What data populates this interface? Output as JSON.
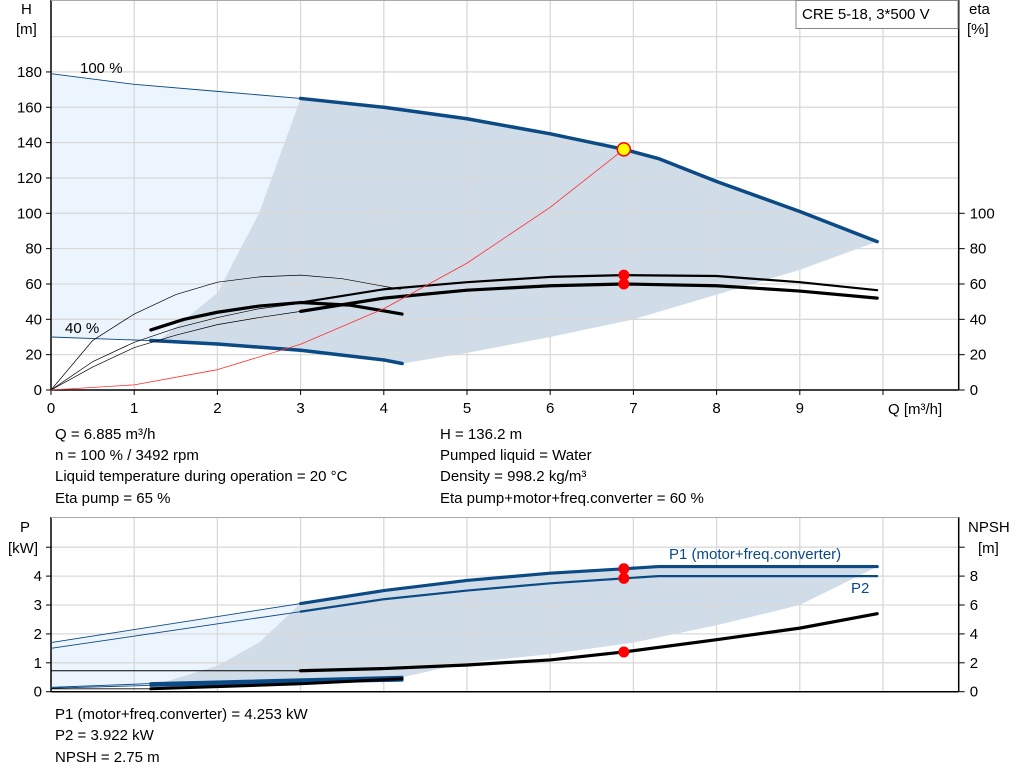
{
  "chart_data": [
    {
      "type": "line",
      "title": "CRE 5-18, 3*500 V",
      "xlabel": "Q [m³/h]",
      "ylabel": "H\n[m]",
      "ylabel_line1": "H",
      "ylabel_line2": "[m]",
      "y2label_line1": "eta",
      "y2label_line2": "[%]",
      "xlim": [
        0,
        10.8
      ],
      "ylim": [
        0,
        220
      ],
      "xticks": [
        0,
        1,
        2,
        3,
        4,
        5,
        6,
        7,
        8,
        9
      ],
      "yticks": [
        0,
        20,
        40,
        60,
        80,
        100,
        120,
        140,
        160,
        180
      ],
      "y2ticks": [
        0,
        20,
        40,
        60,
        80,
        100
      ],
      "grid": true,
      "curve_labels": {
        "max_speed": "100 %",
        "min_speed": "40 %"
      },
      "series": [
        {
          "key": "h100",
          "x": [
            0,
            1,
            2,
            3,
            4,
            5,
            6,
            6.885,
            7.3,
            8,
            9,
            9.93
          ],
          "y": [
            179,
            173,
            169,
            165,
            160,
            153.5,
            145,
            136.2,
            131,
            118,
            101,
            84
          ],
          "color": "#0b4a85",
          "thick_from": 3
        },
        {
          "key": "h40",
          "x": [
            0,
            1,
            1.2,
            2,
            3,
            4,
            4.22
          ],
          "y": [
            30,
            28.3,
            28,
            26,
            22.5,
            17,
            15
          ],
          "color": "#0b4a85",
          "thick_from": 1.2
        },
        {
          "key": "eta_pump",
          "x": [
            3,
            4,
            5,
            6,
            6.885,
            8,
            9,
            9.93
          ],
          "y": [
            49.5,
            57,
            61,
            64,
            65,
            64.5,
            61,
            56.5
          ],
          "color": "#000"
        },
        {
          "key": "eta_total",
          "x": [
            3,
            4,
            5,
            6,
            6.885,
            8,
            9,
            9.93
          ],
          "y": [
            44.5,
            52,
            56.5,
            59,
            60,
            59,
            56,
            52
          ],
          "color": "#000"
        },
        {
          "key": "eta40_thick",
          "x": [
            1.2,
            1.6,
            2,
            2.5,
            3,
            3.6,
            4.22
          ],
          "y": [
            34,
            40,
            44,
            47.5,
            49.5,
            48,
            43
          ],
          "color": "#000"
        },
        {
          "key": "eta40_a",
          "x": [
            0,
            0.5,
            1,
            1.5,
            2,
            2.5,
            3,
            3.5,
            4.2
          ],
          "y": [
            0,
            28,
            43,
            54,
            61,
            64,
            65,
            63,
            57
          ],
          "color": "#000"
        },
        {
          "key": "eta40_b",
          "x": [
            0,
            0.5,
            1,
            1.5,
            2,
            2.5,
            3
          ],
          "y": [
            0,
            16,
            27,
            35,
            41,
            46,
            49
          ],
          "color": "#000"
        },
        {
          "key": "eta40_c",
          "x": [
            0,
            0.5,
            1,
            1.5,
            2,
            2.5,
            3
          ],
          "y": [
            0,
            13,
            24,
            31,
            37,
            41,
            44.5
          ],
          "color": "#000"
        },
        {
          "key": "system",
          "x": [
            0,
            1,
            2,
            3,
            4,
            5,
            6,
            6.885
          ],
          "y": [
            0,
            2.9,
            11.5,
            25.9,
            46,
            71.8,
            103.4,
            136.2
          ],
          "color": "#ff3030"
        }
      ],
      "duty_point": {
        "x": 6.885,
        "y": 136.2,
        "color": "#ffff00"
      },
      "eta_points": [
        65,
        60
      ],
      "area_light": {
        "x": [
          0,
          1,
          2,
          3,
          2.5,
          2,
          1.3,
          1,
          0
        ],
        "y": [
          179,
          173,
          169,
          165,
          100,
          55,
          28,
          28.3,
          30
        ]
      },
      "area_dark": {
        "x": [
          1.3,
          2,
          2.5,
          3,
          4,
          5,
          6,
          6.885,
          7.3,
          8,
          9,
          9.93,
          9,
          8,
          7,
          6,
          5,
          4.22,
          4,
          3,
          2
        ],
        "y": [
          28,
          55,
          100,
          165,
          160,
          153.5,
          145,
          136.2,
          131,
          118,
          101,
          84,
          68,
          54,
          40,
          30,
          21,
          15,
          17,
          22.5,
          26
        ]
      }
    },
    {
      "type": "line",
      "ylabel_line1": "P",
      "ylabel_line2": "[kW]",
      "y2label_line1": "NPSH",
      "y2label_line2": "[m]",
      "xlim": [
        0,
        10.8
      ],
      "ylim": [
        0,
        5.5
      ],
      "yticks": [
        0,
        1,
        2,
        3,
        4
      ],
      "y2ticks": [
        0,
        2,
        4,
        6,
        8
      ],
      "y2lim": [
        0,
        11
      ],
      "grid": true,
      "series": [
        {
          "key": "p1",
          "name": "P1 (motor+freq.converter)",
          "x": [
            0,
            3,
            4,
            5,
            6,
            6.885,
            7.3,
            9.93
          ],
          "y": [
            1.7,
            3.05,
            3.5,
            3.85,
            4.1,
            4.253,
            4.33,
            4.33
          ],
          "color": "#0b4a85",
          "thick_from": 3
        },
        {
          "key": "p2",
          "name": "P2",
          "x": [
            0,
            3,
            4,
            5,
            6,
            6.885,
            7.3,
            9.93
          ],
          "y": [
            1.5,
            2.77,
            3.2,
            3.5,
            3.75,
            3.922,
            4.0,
            4.0
          ],
          "color": "#0b4a85",
          "thick_from": 3
        },
        {
          "key": "npsh",
          "x": [
            0,
            3,
            4,
            5,
            6,
            6.885,
            8,
            9,
            9.93
          ],
          "y_m": [
            1.45,
            1.45,
            1.6,
            1.85,
            2.2,
            2.75,
            3.6,
            4.4,
            5.4
          ],
          "color": "#000",
          "thick_from": 3
        },
        {
          "key": "p1_40",
          "x": [
            0,
            1.2,
            4.22
          ],
          "y": [
            0.15,
            0.28,
            0.5
          ],
          "color": "#0b4a85",
          "thick_from": 1.2
        },
        {
          "key": "p2_40",
          "x": [
            0,
            1.2,
            4.22
          ],
          "y": [
            0.12,
            0.22,
            0.4
          ],
          "color": "#0b4a85",
          "thick_from": 1.2
        },
        {
          "key": "npsh_40",
          "x": [
            0,
            1.2,
            2,
            3,
            4.22
          ],
          "y_m": [
            0.2,
            0.2,
            0.35,
            0.55,
            0.9
          ],
          "color": "#000",
          "thick_from": 1.2
        }
      ],
      "points": {
        "p1": 4.253,
        "p2": 3.922,
        "npsh_m": 2.75
      },
      "area_light": {
        "x": [
          0,
          3,
          2.5,
          2,
          1.3,
          0
        ],
        "y": [
          1.7,
          3.05,
          1.7,
          0.9,
          0.28,
          0.15
        ]
      },
      "area_dark": {
        "x": [
          1.3,
          2,
          2.5,
          3,
          4,
          5,
          6,
          6.885,
          7.3,
          9.93,
          9,
          8,
          7,
          6,
          5,
          4.22
        ],
        "y": [
          0.28,
          0.9,
          1.7,
          3.05,
          3.5,
          3.85,
          4.1,
          4.253,
          4.33,
          4.33,
          3.0,
          2.3,
          1.7,
          1.3,
          1.0,
          0.5
        ]
      }
    }
  ],
  "info": {
    "q": "Q = 6.885 m³/h",
    "n": "n = 100 % / 3492 rpm",
    "temp": "Liquid temperature during operation = 20 °C",
    "eta_pump": "Eta pump = 65 %",
    "h": "H = 136.2 m",
    "liquid": "Pumped liquid = Water",
    "density": "Density = 998.2 kg/m³",
    "eta_total": "Eta pump+motor+freq.converter = 60 %",
    "p1": "P1 (motor+freq.converter) = 4.253 kW",
    "p2": "P2 = 3.922 kW",
    "npsh": "NPSH = 2.75 m"
  },
  "colors": {
    "curve_blue": "#0b4a85",
    "area_dark": "#d0dce8",
    "area_light": "#ecf5fd",
    "marker": "#ff0000"
  }
}
